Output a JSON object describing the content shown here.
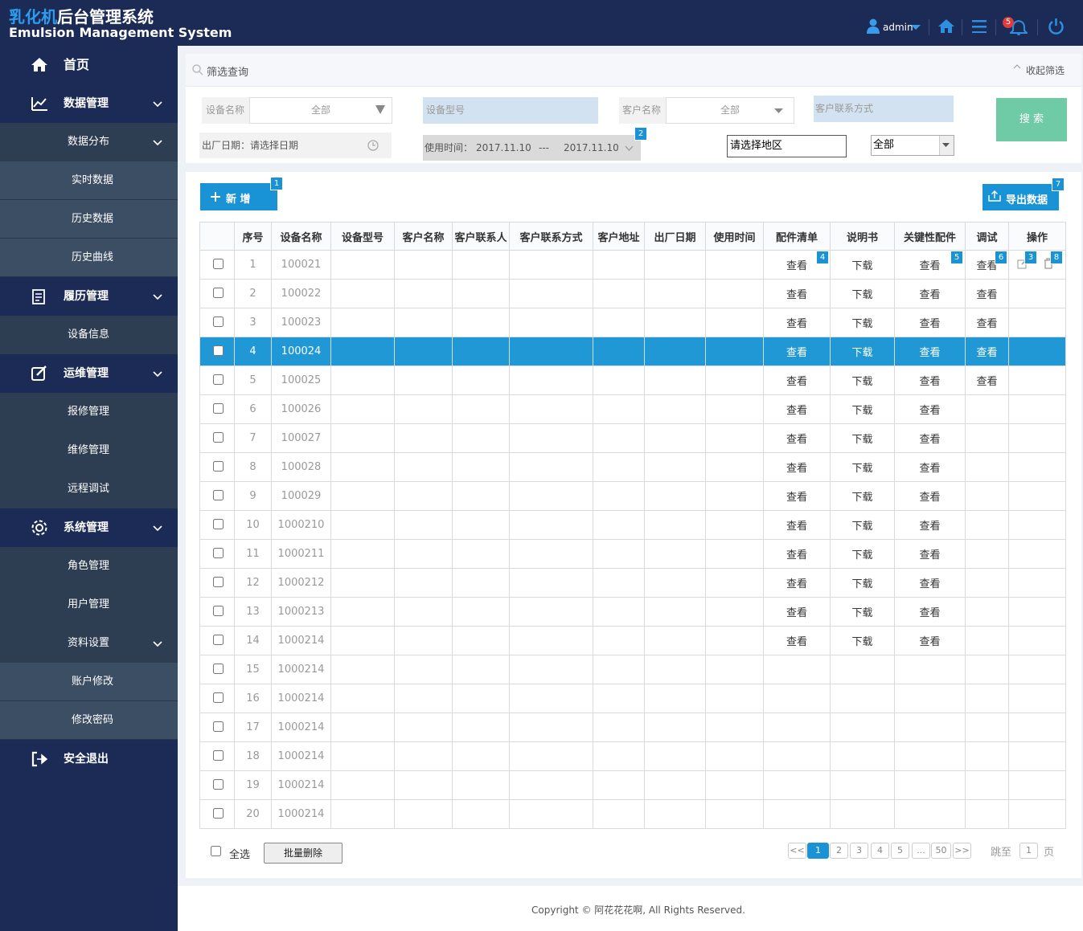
{
  "header": {
    "title_highlight": "乳化机",
    "title": "后台管理系统",
    "subtitle": "Emulsion Management System",
    "user": "admin",
    "notification_count": "5"
  },
  "sidebar": {
    "items": [
      {
        "label": "首页"
      },
      {
        "label": "数据管理",
        "children": [
          {
            "label": "数据分布",
            "children": [
              {
                "label": "实时数据"
              },
              {
                "label": "历史数据"
              },
              {
                "label": "历史曲线"
              }
            ]
          }
        ]
      },
      {
        "label": "履历管理",
        "children": [
          {
            "label": "设备信息"
          }
        ]
      },
      {
        "label": "运维管理",
        "children": [
          {
            "label": "报修管理"
          },
          {
            "label": "维修管理"
          },
          {
            "label": "远程调试"
          }
        ]
      },
      {
        "label": "系统管理",
        "children": [
          {
            "label": "角色管理"
          },
          {
            "label": "用户管理"
          },
          {
            "label": "资料设置",
            "children": [
              {
                "label": "账户修改"
              },
              {
                "label": "修改密码"
              }
            ]
          }
        ]
      },
      {
        "label": "安全退出"
      }
    ]
  },
  "filter": {
    "title": "筛选查询",
    "collapse": "收起筛选",
    "device_name": {
      "label": "设备名称",
      "value": "全部"
    },
    "device_model": {
      "placeholder": "设备型号"
    },
    "customer_name": {
      "label": "客户名称",
      "value": "全部"
    },
    "customer_contact": {
      "placeholder": "客户联系方式"
    },
    "search": "搜 索",
    "factory_date": "出厂日期：请选择日期",
    "usage_time": {
      "label": "使用时间：",
      "start": "2017.11.10",
      "separator": "---",
      "end": "2017.11.10",
      "badge": "2"
    },
    "region": "请选择地区",
    "region_select": "全部"
  },
  "toolbar": {
    "add": "新 增",
    "add_badge": "1",
    "export": "导出数据",
    "export_badge": "7"
  },
  "table": {
    "columns": [
      "序号",
      "设备名称",
      "设备型号",
      "客户名称",
      "客户联系人",
      "客户联系方式",
      "客户地址",
      "出厂日期",
      "使用时间",
      "配件清单",
      "说明书",
      "关键性配件",
      "调试",
      "操作"
    ],
    "badges": {
      "parts": "4",
      "key_parts": "5",
      "debug": "6",
      "edit": "3",
      "delete": "8"
    },
    "rows": [
      {
        "index": 1,
        "name": "100021",
        "parts": "查看",
        "manual": "下载",
        "key_parts": "查看",
        "debug": "查看"
      },
      {
        "index": 2,
        "name": "100022",
        "parts": "查看",
        "manual": "下载",
        "key_parts": "查看",
        "debug": "查看"
      },
      {
        "index": 3,
        "name": "100023",
        "parts": "查看",
        "manual": "下载",
        "key_parts": "查看",
        "debug": "查看"
      },
      {
        "index": 4,
        "name": "100024",
        "parts": "查看",
        "manual": "下载",
        "key_parts": "查看",
        "debug": "查看",
        "selected": true
      },
      {
        "index": 5,
        "name": "100025",
        "parts": "查看",
        "manual": "下载",
        "key_parts": "查看",
        "debug": "查看"
      },
      {
        "index": 6,
        "name": "100026",
        "parts": "查看",
        "manual": "下载",
        "key_parts": "查看"
      },
      {
        "index": 7,
        "name": "100027",
        "parts": "查看",
        "manual": "下载",
        "key_parts": "查看"
      },
      {
        "index": 8,
        "name": "100028",
        "parts": "查看",
        "manual": "下载",
        "key_parts": "查看"
      },
      {
        "index": 9,
        "name": "100029",
        "parts": "查看",
        "manual": "下载",
        "key_parts": "查看"
      },
      {
        "index": 10,
        "name": "1000210",
        "parts": "查看",
        "manual": "下载",
        "key_parts": "查看"
      },
      {
        "index": 11,
        "name": "1000211",
        "parts": "查看",
        "manual": "下载",
        "key_parts": "查看"
      },
      {
        "index": 12,
        "name": "1000212",
        "parts": "查看",
        "manual": "下载",
        "key_parts": "查看"
      },
      {
        "index": 13,
        "name": "1000213",
        "parts": "查看",
        "manual": "下载",
        "key_parts": "查看"
      },
      {
        "index": 14,
        "name": "1000214",
        "parts": "查看",
        "manual": "下载",
        "key_parts": "查看"
      },
      {
        "index": 15,
        "name": "1000214"
      },
      {
        "index": 16,
        "name": "1000214"
      },
      {
        "index": 17,
        "name": "1000214"
      },
      {
        "index": 18,
        "name": "1000214"
      },
      {
        "index": 19,
        "name": "1000214"
      },
      {
        "index": 20,
        "name": "1000214"
      }
    ]
  },
  "footer": {
    "select_all": "全选",
    "batch_delete": "批量删除",
    "pagination": {
      "prev": "<<",
      "pages": [
        {
          "label": "1",
          "active": true
        },
        {
          "label": "2"
        },
        {
          "label": "3"
        },
        {
          "label": "4"
        },
        {
          "label": "5"
        },
        {
          "label": "..."
        },
        {
          "label": "50"
        }
      ],
      "next": ">>",
      "jump_label": "跳至",
      "jump_value": "1",
      "page_unit": "页"
    }
  },
  "copyright": "Copyright © 阿花花花啊, All Rights Reserved."
}
